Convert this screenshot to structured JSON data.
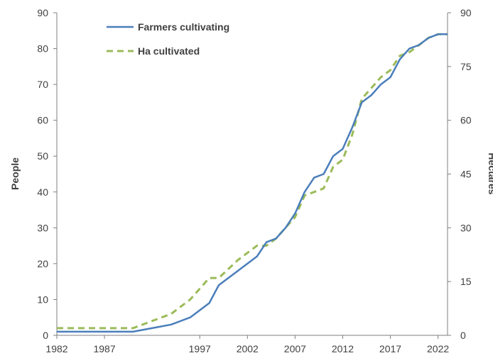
{
  "chart_data": {
    "type": "line",
    "title": "",
    "ylabel_left": "People",
    "ylabel_right": "Hectares",
    "xlim": [
      1982,
      2023
    ],
    "ylim_left": [
      0,
      90
    ],
    "ylim_right": [
      0,
      90
    ],
    "x_ticks": [
      1982,
      1987,
      1997,
      2002,
      2007,
      2012,
      2017,
      2022
    ],
    "y_ticks_left": [
      0,
      10,
      20,
      30,
      40,
      50,
      60,
      70,
      80,
      90
    ],
    "y_ticks_right": [
      0,
      15,
      30,
      45,
      60,
      75,
      90
    ],
    "grid": false,
    "legend_position": "top-left",
    "series": [
      {
        "name": "Farmers cultivating",
        "axis": "left",
        "color": "#4a7ebb",
        "style": "solid",
        "points": [
          [
            1982,
            1
          ],
          [
            1984,
            1
          ],
          [
            1986,
            1
          ],
          [
            1988,
            1
          ],
          [
            1990,
            1
          ],
          [
            1992,
            2
          ],
          [
            1994,
            3
          ],
          [
            1996,
            5
          ],
          [
            1998,
            9
          ],
          [
            1999,
            14
          ],
          [
            2001,
            18
          ],
          [
            2003,
            22
          ],
          [
            2004,
            26
          ],
          [
            2005,
            27
          ],
          [
            2006,
            30
          ],
          [
            2007,
            34
          ],
          [
            2008,
            40
          ],
          [
            2009,
            44
          ],
          [
            2010,
            45
          ],
          [
            2011,
            50
          ],
          [
            2012,
            52
          ],
          [
            2013,
            58
          ],
          [
            2014,
            65
          ],
          [
            2015,
            67
          ],
          [
            2016,
            70
          ],
          [
            2017,
            72
          ],
          [
            2018,
            77
          ],
          [
            2019,
            80
          ],
          [
            2020,
            81
          ],
          [
            2021,
            83
          ],
          [
            2022,
            84
          ],
          [
            2023,
            84
          ]
        ]
      },
      {
        "name": "Ha cultivated",
        "axis": "right",
        "color": "#9bbb59",
        "style": "dashed",
        "points": [
          [
            1982,
            2
          ],
          [
            1984,
            2
          ],
          [
            1986,
            2
          ],
          [
            1988,
            2
          ],
          [
            1990,
            2
          ],
          [
            1992,
            4
          ],
          [
            1994,
            6
          ],
          [
            1996,
            10
          ],
          [
            1998,
            16
          ],
          [
            1999,
            16
          ],
          [
            2001,
            21
          ],
          [
            2003,
            25
          ],
          [
            2004,
            25
          ],
          [
            2005,
            27
          ],
          [
            2006,
            30
          ],
          [
            2007,
            33
          ],
          [
            2008,
            39
          ],
          [
            2009,
            40
          ],
          [
            2010,
            41
          ],
          [
            2011,
            47
          ],
          [
            2012,
            49
          ],
          [
            2013,
            56
          ],
          [
            2014,
            66
          ],
          [
            2015,
            69
          ],
          [
            2016,
            72
          ],
          [
            2017,
            74
          ],
          [
            2018,
            78
          ],
          [
            2019,
            79
          ],
          [
            2020,
            81
          ],
          [
            2021,
            83
          ],
          [
            2022,
            84
          ],
          [
            2023,
            84
          ]
        ]
      }
    ]
  }
}
